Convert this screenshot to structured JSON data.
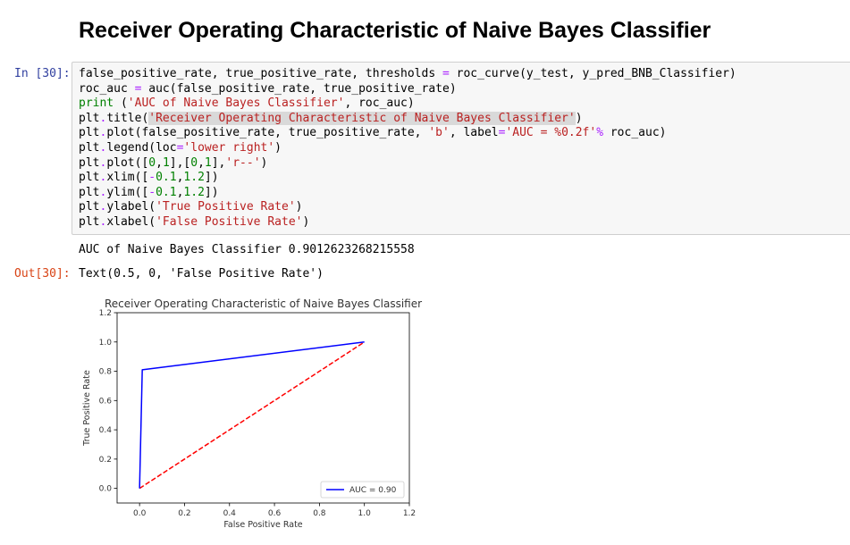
{
  "heading": "Receiver Operating Characteristic of Naive Bayes Classifier",
  "cell": {
    "in_prompt": "In [30]:",
    "out_prompt": "Out[30]:",
    "code_lines": [
      [
        {
          "t": "false_positive_rate, true_positive_rate, thresholds "
        },
        {
          "t": "=",
          "c": "o"
        },
        {
          "t": " roc_curve(y_test, y_pred_BNB_Classifier)"
        }
      ],
      [
        {
          "t": "roc_auc "
        },
        {
          "t": "=",
          "c": "o"
        },
        {
          "t": " auc(false_positive_rate, true_positive_rate)"
        }
      ],
      [
        {
          "t": "print",
          "c": "k"
        },
        {
          "t": " ("
        },
        {
          "t": "'AUC of Naive Bayes Classifier'",
          "c": "s"
        },
        {
          "t": ", roc_auc)"
        }
      ],
      [
        {
          "t": "plt"
        },
        {
          "t": ".",
          "c": "o"
        },
        {
          "t": "title("
        },
        {
          "t": "'Receiver Operating Characteristic of Naive Bayes Classifier'",
          "c": "s hl"
        },
        {
          "t": ")"
        }
      ],
      [
        {
          "t": "plt"
        },
        {
          "t": ".",
          "c": "o"
        },
        {
          "t": "plot(false_positive_rate, true_positive_rate, "
        },
        {
          "t": "'b'",
          "c": "s"
        },
        {
          "t": ", label"
        },
        {
          "t": "=",
          "c": "o"
        },
        {
          "t": "'AUC = %0.2f'",
          "c": "s"
        },
        {
          "t": "%",
          "c": "o"
        },
        {
          "t": " roc_auc)"
        }
      ],
      [
        {
          "t": "plt"
        },
        {
          "t": ".",
          "c": "o"
        },
        {
          "t": "legend(loc"
        },
        {
          "t": "=",
          "c": "o"
        },
        {
          "t": "'lower right'",
          "c": "s"
        },
        {
          "t": ")"
        }
      ],
      [
        {
          "t": "plt"
        },
        {
          "t": ".",
          "c": "o"
        },
        {
          "t": "plot(["
        },
        {
          "t": "0",
          "c": "n"
        },
        {
          "t": ","
        },
        {
          "t": "1",
          "c": "n"
        },
        {
          "t": "],["
        },
        {
          "t": "0",
          "c": "n"
        },
        {
          "t": ","
        },
        {
          "t": "1",
          "c": "n"
        },
        {
          "t": "],"
        },
        {
          "t": "'r--'",
          "c": "s"
        },
        {
          "t": ")"
        }
      ],
      [
        {
          "t": "plt"
        },
        {
          "t": ".",
          "c": "o"
        },
        {
          "t": "xlim(["
        },
        {
          "t": "-",
          "c": "o"
        },
        {
          "t": "0.1",
          "c": "n"
        },
        {
          "t": ","
        },
        {
          "t": "1.2",
          "c": "n"
        },
        {
          "t": "])"
        }
      ],
      [
        {
          "t": "plt"
        },
        {
          "t": ".",
          "c": "o"
        },
        {
          "t": "ylim(["
        },
        {
          "t": "-",
          "c": "o"
        },
        {
          "t": "0.1",
          "c": "n"
        },
        {
          "t": ","
        },
        {
          "t": "1.2",
          "c": "n"
        },
        {
          "t": "])"
        }
      ],
      [
        {
          "t": "plt"
        },
        {
          "t": ".",
          "c": "o"
        },
        {
          "t": "ylabel("
        },
        {
          "t": "'True Positive Rate'",
          "c": "s"
        },
        {
          "t": ")"
        }
      ],
      [
        {
          "t": "plt"
        },
        {
          "t": ".",
          "c": "o"
        },
        {
          "t": "xlabel("
        },
        {
          "t": "'False Positive Rate'",
          "c": "s"
        },
        {
          "t": ")"
        }
      ]
    ],
    "stdout": "AUC of Naive Bayes Classifier 0.9012623268215558",
    "out_text": "Text(0.5, 0, 'False Positive Rate')"
  },
  "chart_data": {
    "type": "line",
    "title": "Receiver Operating Characteristic of Naive Bayes Classifier",
    "xlabel": "False Positive Rate",
    "ylabel": "True Positive Rate",
    "xlim": [
      -0.1,
      1.2
    ],
    "ylim": [
      -0.1,
      1.2
    ],
    "xticks": [
      "0.0",
      "0.2",
      "0.4",
      "0.6",
      "0.8",
      "1.0",
      "1.2"
    ],
    "yticks": [
      "0.0",
      "0.2",
      "0.4",
      "0.6",
      "0.8",
      "1.0",
      "1.2"
    ],
    "grid": false,
    "legend_position": "lower right",
    "series": [
      {
        "name": "AUC = 0.90",
        "color": "#0000ff",
        "style": "solid",
        "x": [
          0.0,
          0.012,
          1.0
        ],
        "y": [
          0.0,
          0.81,
          1.0
        ]
      },
      {
        "color": "#ff0000",
        "style": "dashed",
        "x": [
          0.0,
          1.0
        ],
        "y": [
          0.0,
          1.0
        ]
      }
    ]
  }
}
